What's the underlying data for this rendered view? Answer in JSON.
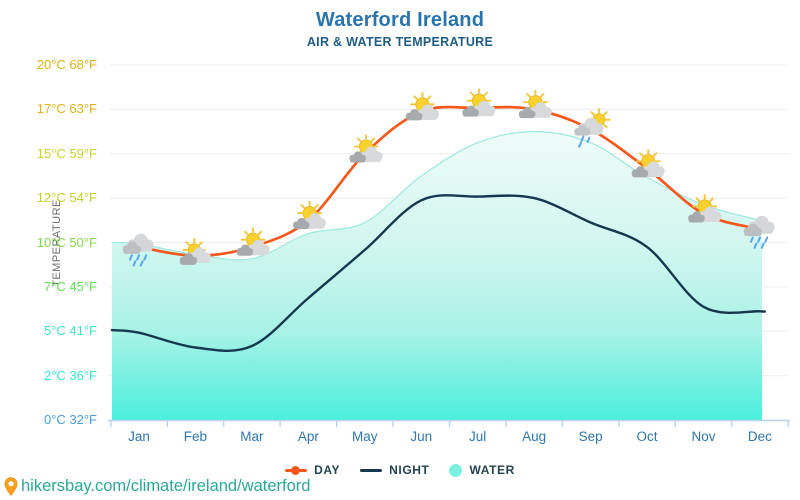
{
  "header": {
    "title": "Waterford Ireland",
    "subtitle": "AIR & WATER TEMPERATURE",
    "title_color": "#2a74ae",
    "subtitle_color": "#1e5e86"
  },
  "y_axis": {
    "title": "TEMPERATURE",
    "ticks": [
      {
        "label": "20°C 68°F",
        "value": 20,
        "color": "#e0b112"
      },
      {
        "label": "17°C 63°F",
        "value": 17,
        "color": "#e0b112"
      },
      {
        "label": "15°C 59°F",
        "value": 15,
        "color": "#c9d32b"
      },
      {
        "label": "12°C 54°F",
        "value": 12,
        "color": "#b9d32b"
      },
      {
        "label": "10°C 50°F",
        "value": 10,
        "color": "#7edc49"
      },
      {
        "label": "7°C 45°F",
        "value": 7,
        "color": "#62e155"
      },
      {
        "label": "5°C 41°F",
        "value": 5,
        "color": "#3ee2cf"
      },
      {
        "label": "2°C 36°F",
        "value": 2,
        "color": "#35e6d6"
      },
      {
        "label": "0°C 32°F",
        "value": 0,
        "color": "#47a0dc"
      }
    ]
  },
  "x_axis": {
    "label_color": "#2f77ad",
    "months": [
      "Jan",
      "Feb",
      "Mar",
      "Apr",
      "May",
      "Jun",
      "Jul",
      "Aug",
      "Sep",
      "Oct",
      "Nov",
      "Dec"
    ]
  },
  "legend": [
    {
      "label": "DAY",
      "marker": "line-dot",
      "color": "#f4581b"
    },
    {
      "label": "NIGHT",
      "marker": "line",
      "color": "#16384e"
    },
    {
      "label": "WATER",
      "marker": "circle",
      "color": "#7df2e1"
    }
  ],
  "footer": {
    "url": "hikersbay.com/climate/ireland/waterford"
  },
  "chart_data": {
    "type": "line",
    "title": "Waterford Ireland",
    "subtitle": "AIR & WATER TEMPERATURE",
    "ylabel": "TEMPERATURE",
    "grid": true,
    "legend_position": "bottom",
    "y_tick_values_celsius": [
      20,
      17,
      15,
      12,
      10,
      7,
      5,
      2,
      0
    ],
    "y_tick_values_fahrenheit": [
      68,
      63,
      59,
      54,
      50,
      45,
      41,
      36,
      32
    ],
    "categories": [
      "Jan",
      "Feb",
      "Mar",
      "Apr",
      "May",
      "Jun",
      "Jul",
      "Aug",
      "Sep",
      "Oct",
      "Nov",
      "Dec"
    ],
    "series": [
      {
        "name": "DAY",
        "color": "#f4581b",
        "style": "line",
        "values": [
          9.7,
          9.1,
          9.7,
          11.0,
          15.0,
          16.9,
          17.1,
          17.0,
          16.1,
          14.0,
          11.3,
          10.6
        ]
      },
      {
        "name": "NIGHT",
        "color": "#16384e",
        "style": "line",
        "values": [
          4.9,
          3.9,
          4.0,
          6.5,
          9.5,
          11.9,
          12.1,
          12.0,
          10.9,
          9.7,
          6.1,
          5.9
        ]
      },
      {
        "name": "WATER",
        "color": "#45efdc",
        "style": "area",
        "values": [
          9.9,
          9.2,
          8.9,
          10.4,
          10.9,
          13.5,
          15.5,
          16.0,
          15.5,
          13.4,
          11.7,
          11.0
        ]
      }
    ],
    "weather_icons": [
      "rain",
      "mostly",
      "partly",
      "partly",
      "partly",
      "partly",
      "partly",
      "partly",
      "rain-sun",
      "partly",
      "partly",
      "rain"
    ]
  }
}
